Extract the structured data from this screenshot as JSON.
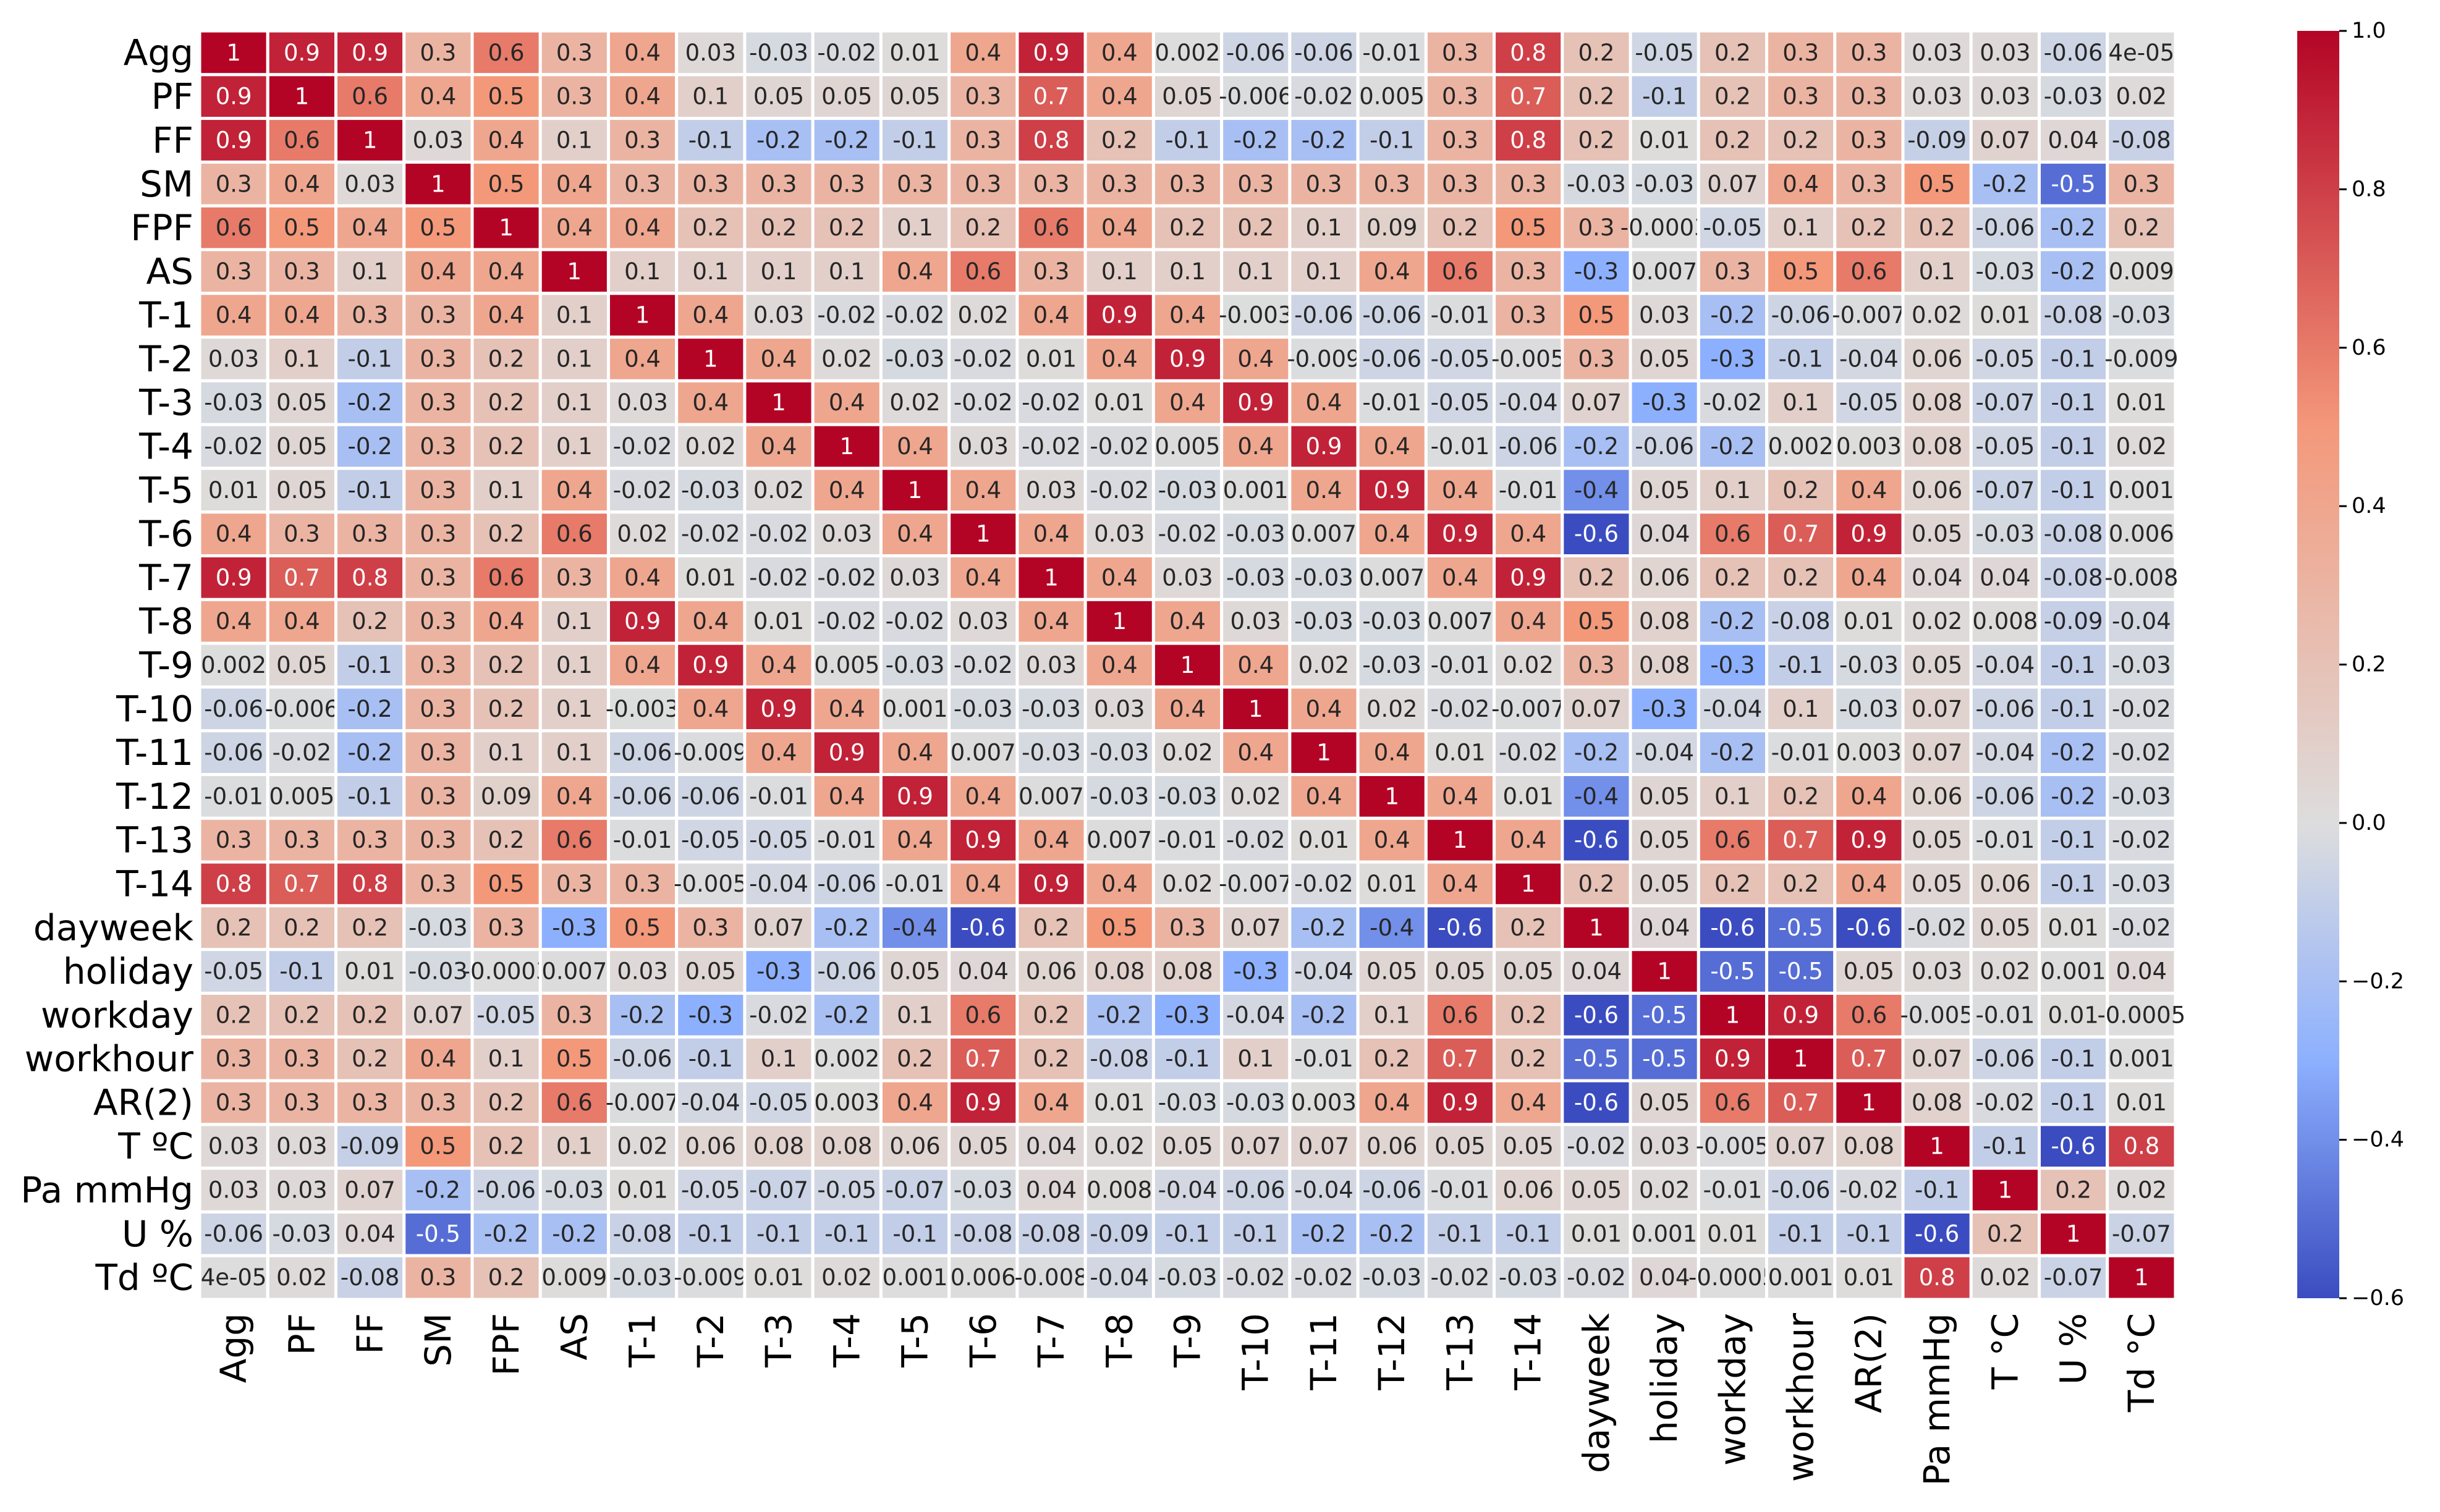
{
  "chart_data": {
    "type": "heatmap",
    "title": "",
    "labels": [
      "Agg",
      "PF",
      "FF",
      "SM",
      "FPF",
      "AS",
      "T-1",
      "T-2",
      "T-3",
      "T-4",
      "T-5",
      "T-6",
      "T-7",
      "T-8",
      "T-9",
      "T-10",
      "T-11",
      "T-12",
      "T-13",
      "T-14",
      "dayweek",
      "holiday",
      "workday",
      "workhour",
      "AR(2)",
      "T °C",
      "Pa mmHg",
      "U %",
      "Td °C"
    ],
    "row_labels": [
      "Agg",
      "PF",
      "FF",
      "SM",
      "FPF",
      "AS",
      "T-1",
      "T-2",
      "T-3",
      "T-4",
      "T-5",
      "T-6",
      "T-7",
      "T-8",
      "T-9",
      "T-10",
      "T-11",
      "T-12",
      "T-13",
      "T-14",
      "dayweek",
      "holiday",
      "workday",
      "workhour",
      "AR(2)",
      "T ºC",
      "Pa mmHg",
      "U %",
      "Td ºC"
    ],
    "col_labels": [
      "Agg",
      "PF",
      "FF",
      "SM",
      "FPF",
      "AS",
      "T-1",
      "T-2",
      "T-3",
      "T-4",
      "T-5",
      "T-6",
      "T-7",
      "T-8",
      "T-9",
      "T-10",
      "T-11",
      "T-12",
      "T-13",
      "T-14",
      "dayweek",
      "holiday",
      "workday",
      "workhour",
      "AR(2)",
      "Pa mmHg",
      "T °C",
      "U %",
      "Td °C"
    ],
    "annotations": [
      [
        "1",
        "0.9",
        "0.9",
        "0.3",
        "0.6",
        "0.3",
        "0.4",
        "0.03",
        "-0.03",
        "-0.02",
        "0.01",
        "0.4",
        "0.9",
        "0.4",
        "0.002",
        "-0.06",
        "-0.06",
        "-0.01",
        "0.3",
        "0.8",
        "0.2",
        "-0.05",
        "0.2",
        "0.3",
        "0.3",
        "0.03",
        "0.03",
        "-0.06",
        "4e-05"
      ],
      [
        "0.9",
        "1",
        "0.6",
        "0.4",
        "0.5",
        "0.3",
        "0.4",
        "0.1",
        "0.05",
        "0.05",
        "0.05",
        "0.3",
        "0.7",
        "0.4",
        "0.05",
        "-0.006",
        "-0.02",
        "0.005",
        "0.3",
        "0.7",
        "0.2",
        "-0.1",
        "0.2",
        "0.3",
        "0.3",
        "0.03",
        "0.03",
        "-0.03",
        "0.02"
      ],
      [
        "0.9",
        "0.6",
        "1",
        "0.03",
        "0.4",
        "0.1",
        "0.3",
        "-0.1",
        "-0.2",
        "-0.2",
        "-0.1",
        "0.3",
        "0.8",
        "0.2",
        "-0.1",
        "-0.2",
        "-0.2",
        "-0.1",
        "0.3",
        "0.8",
        "0.2",
        "0.01",
        "0.2",
        "0.2",
        "0.3",
        "-0.09",
        "0.07",
        "0.04",
        "-0.08"
      ],
      [
        "0.3",
        "0.4",
        "0.03",
        "1",
        "0.5",
        "0.4",
        "0.3",
        "0.3",
        "0.3",
        "0.3",
        "0.3",
        "0.3",
        "0.3",
        "0.3",
        "0.3",
        "0.3",
        "0.3",
        "0.3",
        "0.3",
        "0.3",
        "-0.03",
        "-0.03",
        "0.07",
        "0.4",
        "0.3",
        "0.5",
        "-0.2",
        "-0.5",
        "0.3"
      ],
      [
        "0.6",
        "0.5",
        "0.4",
        "0.5",
        "1",
        "0.4",
        "0.4",
        "0.2",
        "0.2",
        "0.2",
        "0.1",
        "0.2",
        "0.6",
        "0.4",
        "0.2",
        "0.2",
        "0.1",
        "0.09",
        "0.2",
        "0.5",
        "0.3",
        "-0.0003",
        "-0.05",
        "0.1",
        "0.2",
        "0.2",
        "-0.06",
        "-0.2",
        "0.2"
      ],
      [
        "0.3",
        "0.3",
        "0.1",
        "0.4",
        "0.4",
        "1",
        "0.1",
        "0.1",
        "0.1",
        "0.1",
        "0.4",
        "0.6",
        "0.3",
        "0.1",
        "0.1",
        "0.1",
        "0.1",
        "0.4",
        "0.6",
        "0.3",
        "-0.3",
        "0.007",
        "0.3",
        "0.5",
        "0.6",
        "0.1",
        "-0.03",
        "-0.2",
        "0.009"
      ],
      [
        "0.4",
        "0.4",
        "0.3",
        "0.3",
        "0.4",
        "0.1",
        "1",
        "0.4",
        "0.03",
        "-0.02",
        "-0.02",
        "0.02",
        "0.4",
        "0.9",
        "0.4",
        "-0.003",
        "-0.06",
        "-0.06",
        "-0.01",
        "0.3",
        "0.5",
        "0.03",
        "-0.2",
        "-0.06",
        "-0.007",
        "0.02",
        "0.01",
        "-0.08",
        "-0.03"
      ],
      [
        "0.03",
        "0.1",
        "-0.1",
        "0.3",
        "0.2",
        "0.1",
        "0.4",
        "1",
        "0.4",
        "0.02",
        "-0.03",
        "-0.02",
        "0.01",
        "0.4",
        "0.9",
        "0.4",
        "-0.009",
        "-0.06",
        "-0.05",
        "-0.005",
        "0.3",
        "0.05",
        "-0.3",
        "-0.1",
        "-0.04",
        "0.06",
        "-0.05",
        "-0.1",
        "-0.009"
      ],
      [
        "-0.03",
        "0.05",
        "-0.2",
        "0.3",
        "0.2",
        "0.1",
        "0.03",
        "0.4",
        "1",
        "0.4",
        "0.02",
        "-0.02",
        "-0.02",
        "0.01",
        "0.4",
        "0.9",
        "0.4",
        "-0.01",
        "-0.05",
        "-0.04",
        "0.07",
        "-0.3",
        "-0.02",
        "0.1",
        "-0.05",
        "0.08",
        "-0.07",
        "-0.1",
        "0.01"
      ],
      [
        "-0.02",
        "0.05",
        "-0.2",
        "0.3",
        "0.2",
        "0.1",
        "-0.02",
        "0.02",
        "0.4",
        "1",
        "0.4",
        "0.03",
        "-0.02",
        "-0.02",
        "0.005",
        "0.4",
        "0.9",
        "0.4",
        "-0.01",
        "-0.06",
        "-0.2",
        "-0.06",
        "-0.2",
        "0.002",
        "0.003",
        "0.08",
        "-0.05",
        "-0.1",
        "0.02"
      ],
      [
        "0.01",
        "0.05",
        "-0.1",
        "0.3",
        "0.1",
        "0.4",
        "-0.02",
        "-0.03",
        "0.02",
        "0.4",
        "1",
        "0.4",
        "0.03",
        "-0.02",
        "-0.03",
        "0.001",
        "0.4",
        "0.9",
        "0.4",
        "-0.01",
        "-0.4",
        "0.05",
        "0.1",
        "0.2",
        "0.4",
        "0.06",
        "-0.07",
        "-0.1",
        "0.001"
      ],
      [
        "0.4",
        "0.3",
        "0.3",
        "0.3",
        "0.2",
        "0.6",
        "0.02",
        "-0.02",
        "-0.02",
        "0.03",
        "0.4",
        "1",
        "0.4",
        "0.03",
        "-0.02",
        "-0.03",
        "0.007",
        "0.4",
        "0.9",
        "0.4",
        "-0.6",
        "0.04",
        "0.6",
        "0.7",
        "0.9",
        "0.05",
        "-0.03",
        "-0.08",
        "0.006"
      ],
      [
        "0.9",
        "0.7",
        "0.8",
        "0.3",
        "0.6",
        "0.3",
        "0.4",
        "0.01",
        "-0.02",
        "-0.02",
        "0.03",
        "0.4",
        "1",
        "0.4",
        "0.03",
        "-0.03",
        "-0.03",
        "0.007",
        "0.4",
        "0.9",
        "0.2",
        "0.06",
        "0.2",
        "0.2",
        "0.4",
        "0.04",
        "0.04",
        "-0.08",
        "-0.008"
      ],
      [
        "0.4",
        "0.4",
        "0.2",
        "0.3",
        "0.4",
        "0.1",
        "0.9",
        "0.4",
        "0.01",
        "-0.02",
        "-0.02",
        "0.03",
        "0.4",
        "1",
        "0.4",
        "0.03",
        "-0.03",
        "-0.03",
        "0.007",
        "0.4",
        "0.5",
        "0.08",
        "-0.2",
        "-0.08",
        "0.01",
        "0.02",
        "0.008",
        "-0.09",
        "-0.04"
      ],
      [
        "0.002",
        "0.05",
        "-0.1",
        "0.3",
        "0.2",
        "0.1",
        "0.4",
        "0.9",
        "0.4",
        "0.005",
        "-0.03",
        "-0.02",
        "0.03",
        "0.4",
        "1",
        "0.4",
        "0.02",
        "-0.03",
        "-0.01",
        "0.02",
        "0.3",
        "0.08",
        "-0.3",
        "-0.1",
        "-0.03",
        "0.05",
        "-0.04",
        "-0.1",
        "-0.03"
      ],
      [
        "-0.06",
        "-0.006",
        "-0.2",
        "0.3",
        "0.2",
        "0.1",
        "-0.003",
        "0.4",
        "0.9",
        "0.4",
        "0.001",
        "-0.03",
        "-0.03",
        "0.03",
        "0.4",
        "1",
        "0.4",
        "0.02",
        "-0.02",
        "-0.007",
        "0.07",
        "-0.3",
        "-0.04",
        "0.1",
        "-0.03",
        "0.07",
        "-0.06",
        "-0.1",
        "-0.02"
      ],
      [
        "-0.06",
        "-0.02",
        "-0.2",
        "0.3",
        "0.1",
        "0.1",
        "-0.06",
        "-0.009",
        "0.4",
        "0.9",
        "0.4",
        "0.007",
        "-0.03",
        "-0.03",
        "0.02",
        "0.4",
        "1",
        "0.4",
        "0.01",
        "-0.02",
        "-0.2",
        "-0.04",
        "-0.2",
        "-0.01",
        "0.003",
        "0.07",
        "-0.04",
        "-0.2",
        "-0.02"
      ],
      [
        "-0.01",
        "0.005",
        "-0.1",
        "0.3",
        "0.09",
        "0.4",
        "-0.06",
        "-0.06",
        "-0.01",
        "0.4",
        "0.9",
        "0.4",
        "0.007",
        "-0.03",
        "-0.03",
        "0.02",
        "0.4",
        "1",
        "0.4",
        "0.01",
        "-0.4",
        "0.05",
        "0.1",
        "0.2",
        "0.4",
        "0.06",
        "-0.06",
        "-0.2",
        "-0.03"
      ],
      [
        "0.3",
        "0.3",
        "0.3",
        "0.3",
        "0.2",
        "0.6",
        "-0.01",
        "-0.05",
        "-0.05",
        "-0.01",
        "0.4",
        "0.9",
        "0.4",
        "0.007",
        "-0.01",
        "-0.02",
        "0.01",
        "0.4",
        "1",
        "0.4",
        "-0.6",
        "0.05",
        "0.6",
        "0.7",
        "0.9",
        "0.05",
        "-0.01",
        "-0.1",
        "-0.02"
      ],
      [
        "0.8",
        "0.7",
        "0.8",
        "0.3",
        "0.5",
        "0.3",
        "0.3",
        "-0.005",
        "-0.04",
        "-0.06",
        "-0.01",
        "0.4",
        "0.9",
        "0.4",
        "0.02",
        "-0.007",
        "-0.02",
        "0.01",
        "0.4",
        "1",
        "0.2",
        "0.05",
        "0.2",
        "0.2",
        "0.4",
        "0.05",
        "0.06",
        "-0.1",
        "-0.03"
      ],
      [
        "0.2",
        "0.2",
        "0.2",
        "-0.03",
        "0.3",
        "-0.3",
        "0.5",
        "0.3",
        "0.07",
        "-0.2",
        "-0.4",
        "-0.6",
        "0.2",
        "0.5",
        "0.3",
        "0.07",
        "-0.2",
        "-0.4",
        "-0.6",
        "0.2",
        "1",
        "0.04",
        "-0.6",
        "-0.5",
        "-0.6",
        "-0.02",
        "0.05",
        "0.01",
        "-0.02"
      ],
      [
        "-0.05",
        "-0.1",
        "0.01",
        "-0.03",
        "-0.0003",
        "0.007",
        "0.03",
        "0.05",
        "-0.3",
        "-0.06",
        "0.05",
        "0.04",
        "0.06",
        "0.08",
        "0.08",
        "-0.3",
        "-0.04",
        "0.05",
        "0.05",
        "0.05",
        "0.04",
        "1",
        "-0.5",
        "-0.5",
        "0.05",
        "0.03",
        "0.02",
        "0.001",
        "0.04"
      ],
      [
        "0.2",
        "0.2",
        "0.2",
        "0.07",
        "-0.05",
        "0.3",
        "-0.2",
        "-0.3",
        "-0.02",
        "-0.2",
        "0.1",
        "0.6",
        "0.2",
        "-0.2",
        "-0.3",
        "-0.04",
        "-0.2",
        "0.1",
        "0.6",
        "0.2",
        "-0.6",
        "-0.5",
        "1",
        "0.9",
        "0.6",
        "-0.005",
        "-0.01",
        "0.01",
        "-0.0005"
      ],
      [
        "0.3",
        "0.3",
        "0.2",
        "0.4",
        "0.1",
        "0.5",
        "-0.06",
        "-0.1",
        "0.1",
        "0.002",
        "0.2",
        "0.7",
        "0.2",
        "-0.08",
        "-0.1",
        "0.1",
        "-0.01",
        "0.2",
        "0.7",
        "0.2",
        "-0.5",
        "-0.5",
        "0.9",
        "1",
        "0.7",
        "0.07",
        "-0.06",
        "-0.1",
        "0.001"
      ],
      [
        "0.3",
        "0.3",
        "0.3",
        "0.3",
        "0.2",
        "0.6",
        "-0.007",
        "-0.04",
        "-0.05",
        "0.003",
        "0.4",
        "0.9",
        "0.4",
        "0.01",
        "-0.03",
        "-0.03",
        "0.003",
        "0.4",
        "0.9",
        "0.4",
        "-0.6",
        "0.05",
        "0.6",
        "0.7",
        "1",
        "0.08",
        "-0.02",
        "-0.1",
        "0.01"
      ],
      [
        "0.03",
        "0.03",
        "-0.09",
        "0.5",
        "0.2",
        "0.1",
        "0.02",
        "0.06",
        "0.08",
        "0.08",
        "0.06",
        "0.05",
        "0.04",
        "0.02",
        "0.05",
        "0.07",
        "0.07",
        "0.06",
        "0.05",
        "0.05",
        "-0.02",
        "0.03",
        "-0.005",
        "0.07",
        "0.08",
        "1",
        "-0.1",
        "-0.6",
        "0.8"
      ],
      [
        "0.03",
        "0.03",
        "0.07",
        "-0.2",
        "-0.06",
        "-0.03",
        "0.01",
        "-0.05",
        "-0.07",
        "-0.05",
        "-0.07",
        "-0.03",
        "0.04",
        "0.008",
        "-0.04",
        "-0.06",
        "-0.04",
        "-0.06",
        "-0.01",
        "0.06",
        "0.05",
        "0.02",
        "-0.01",
        "-0.06",
        "-0.02",
        "-0.1",
        "1",
        "0.2",
        "0.02"
      ],
      [
        "-0.06",
        "-0.03",
        "0.04",
        "-0.5",
        "-0.2",
        "-0.2",
        "-0.08",
        "-0.1",
        "-0.1",
        "-0.1",
        "-0.1",
        "-0.08",
        "-0.08",
        "-0.09",
        "-0.1",
        "-0.1",
        "-0.2",
        "-0.2",
        "-0.1",
        "-0.1",
        "0.01",
        "0.001",
        "0.01",
        "-0.1",
        "-0.1",
        "-0.6",
        "0.2",
        "1",
        "-0.07"
      ],
      [
        "4e-05",
        "0.02",
        "-0.08",
        "0.3",
        "0.2",
        "0.009",
        "-0.03",
        "-0.009",
        "0.01",
        "0.02",
        "0.001",
        "0.006",
        "-0.008",
        "-0.04",
        "-0.03",
        "-0.02",
        "-0.02",
        "-0.03",
        "-0.02",
        "-0.03",
        "-0.02",
        "0.04",
        "-0.0005",
        "0.001",
        "0.01",
        "0.8",
        "0.02",
        "-0.07",
        "1"
      ]
    ],
    "colorbar": {
      "colormap": "coolwarm",
      "range": [
        -0.6,
        1.0
      ],
      "ticks": [
        1.0,
        0.8,
        0.6,
        0.4,
        0.2,
        0.0,
        -0.2,
        -0.4,
        -0.6
      ],
      "tick_labels": [
        "1.0",
        "0.8",
        "0.6",
        "0.4",
        "0.2",
        "0.0",
        "−0.2",
        "−0.4",
        "−0.6"
      ]
    }
  }
}
